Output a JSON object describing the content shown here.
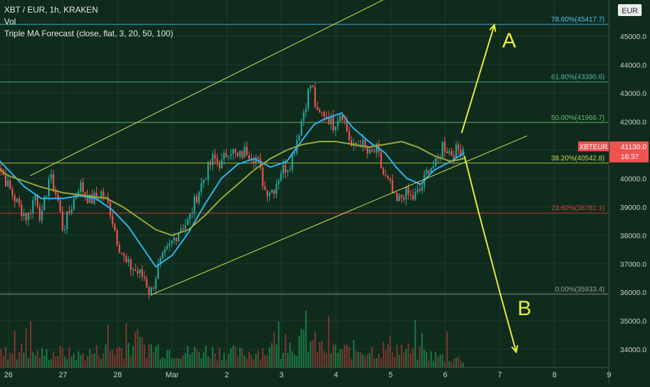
{
  "header": {
    "symbol_line": "XBT / EUR, 1h, KRAKEN",
    "volume_label": "Vol",
    "indicator_label": "Triple MA Forecast (close, flat, 3, 20, 50, 100)"
  },
  "currency_badge": "EUR",
  "price_tag": {
    "symbol": "XBTEUR",
    "value": "41130.0",
    "countdown": "16:37"
  },
  "annotations": {
    "up_label": "A",
    "down_label": "B"
  },
  "colors": {
    "background": "#0f2b1c",
    "up_candle": "#26a69a",
    "down_candle": "#ef5350",
    "fast_ma": "#29b6f6",
    "slow_ma": "#9aa83a",
    "channel": "#d4e157",
    "forecast_arrows": "#e6ee3c",
    "fib_78_6": "#4fc3f7",
    "fib_61_8": "#4db6ac",
    "fib_50": "#66bb6a",
    "fib_38_2": "#c6d845",
    "fib_23_6": "#e53935",
    "fib_0": "#9e9e9e"
  },
  "chart_data": {
    "type": "candlestick",
    "symbol": "XBT / EUR",
    "interval": "1h",
    "exchange": "KRAKEN",
    "last_price": 41130.0,
    "y_ticks": [
      34000,
      35000,
      36000,
      37000,
      38000,
      39000,
      40000,
      41000,
      42000,
      43000,
      44000,
      45000
    ],
    "y_tick_labels": [
      "34000.0",
      "35000.0",
      "36000.0",
      "37000.0",
      "38000.0",
      "39000.0",
      "40000.0",
      "41000.0",
      "42000.0",
      "43000.0",
      "44000.0",
      "45000.0"
    ],
    "x_tick_labels": [
      "26",
      "27",
      "28",
      "Mar",
      "2",
      "3",
      "4",
      "5",
      "6",
      "7",
      "8",
      "9"
    ],
    "fibonacci_levels": [
      {
        "label": "78.60%(45417.7)",
        "value": 45417.7
      },
      {
        "label": "61.80%(43390.6)",
        "value": 43390.6
      },
      {
        "label": "50.00%(41966.7)",
        "value": 41966.7
      },
      {
        "label": "38.20%(40542.8)",
        "value": 40542.8
      },
      {
        "label": "23.60%(38781.1)",
        "value": 38781.1
      },
      {
        "label": "0.00%(35933.4)",
        "value": 35933.4
      }
    ],
    "price_path": [
      [
        25.7,
        41000
      ],
      [
        25.85,
        40400
      ],
      [
        26.0,
        39700
      ],
      [
        26.2,
        39000
      ],
      [
        26.35,
        38600
      ],
      [
        26.5,
        39500
      ],
      [
        26.6,
        38500
      ],
      [
        26.75,
        40100
      ],
      [
        26.9,
        39300
      ],
      [
        27.0,
        38200
      ],
      [
        27.15,
        39000
      ],
      [
        27.3,
        39800
      ],
      [
        27.5,
        39200
      ],
      [
        27.7,
        39500
      ],
      [
        27.85,
        39000
      ],
      [
        28.0,
        37800
      ],
      [
        28.15,
        37000
      ],
      [
        28.3,
        36800
      ],
      [
        28.5,
        36500
      ],
      [
        28.6,
        35933
      ],
      [
        28.75,
        36900
      ],
      [
        28.95,
        37600
      ],
      [
        29.15,
        38300
      ],
      [
        29.3,
        38500
      ],
      [
        29.45,
        39400
      ],
      [
        29.6,
        40100
      ],
      [
        29.75,
        40700
      ],
      [
        29.9,
        40500
      ],
      [
        30.05,
        41100
      ],
      [
        30.2,
        40700
      ],
      [
        30.35,
        41000
      ],
      [
        30.55,
        40700
      ],
      [
        30.7,
        39600
      ],
      [
        30.85,
        39600
      ],
      [
        31.0,
        40300
      ],
      [
        31.15,
        40500
      ],
      [
        31.3,
        41500
      ],
      [
        31.4,
        42300
      ],
      [
        31.5,
        43100
      ],
      [
        31.55,
        43390
      ],
      [
        31.65,
        42200
      ],
      [
        31.8,
        42300
      ],
      [
        31.95,
        41900
      ],
      [
        32.1,
        42400
      ],
      [
        32.2,
        41700
      ],
      [
        32.3,
        41000
      ],
      [
        32.45,
        41300
      ],
      [
        32.6,
        40800
      ],
      [
        32.75,
        41000
      ],
      [
        32.85,
        40200
      ],
      [
        33.0,
        39700
      ],
      [
        33.1,
        39100
      ],
      [
        33.25,
        39500
      ],
      [
        33.4,
        39300
      ],
      [
        33.55,
        39600
      ],
      [
        33.7,
        40400
      ],
      [
        33.85,
        40500
      ],
      [
        33.95,
        41200
      ],
      [
        34.1,
        40900
      ],
      [
        34.25,
        41000
      ],
      [
        34.35,
        41130
      ]
    ],
    "volume_profile": [
      [
        25.7,
        0.35
      ],
      [
        26.0,
        0.45
      ],
      [
        26.3,
        0.5
      ],
      [
        26.6,
        0.4
      ],
      [
        27.0,
        0.45
      ],
      [
        27.3,
        0.35
      ],
      [
        27.7,
        0.5
      ],
      [
        28.0,
        0.55
      ],
      [
        28.3,
        0.7
      ],
      [
        28.6,
        0.6
      ],
      [
        29.0,
        0.5
      ],
      [
        29.3,
        0.45
      ],
      [
        29.6,
        0.5
      ],
      [
        30.0,
        0.45
      ],
      [
        30.3,
        0.4
      ],
      [
        30.6,
        0.5
      ],
      [
        31.0,
        0.55
      ],
      [
        31.3,
        0.75
      ],
      [
        31.5,
        0.8
      ],
      [
        31.8,
        0.55
      ],
      [
        32.2,
        0.5
      ],
      [
        32.5,
        0.55
      ],
      [
        32.8,
        0.5
      ],
      [
        33.0,
        0.65
      ],
      [
        33.3,
        0.5
      ],
      [
        33.6,
        0.4
      ],
      [
        34.0,
        0.3
      ],
      [
        34.35,
        0.25
      ]
    ],
    "moving_averages": [
      {
        "name": "fast",
        "points": [
          [
            25.7,
            40900
          ],
          [
            26.0,
            40300
          ],
          [
            26.3,
            39700
          ],
          [
            26.6,
            39300
          ],
          [
            27.0,
            39300
          ],
          [
            27.3,
            39400
          ],
          [
            27.6,
            39300
          ],
          [
            27.9,
            38900
          ],
          [
            28.2,
            38300
          ],
          [
            28.45,
            37600
          ],
          [
            28.7,
            36900
          ],
          [
            29.0,
            37300
          ],
          [
            29.3,
            38100
          ],
          [
            29.6,
            39100
          ],
          [
            29.9,
            40000
          ],
          [
            30.2,
            40500
          ],
          [
            30.5,
            40700
          ],
          [
            30.8,
            40400
          ],
          [
            31.1,
            40600
          ],
          [
            31.4,
            41400
          ],
          [
            31.6,
            41900
          ],
          [
            31.8,
            42100
          ],
          [
            32.1,
            42300
          ],
          [
            32.3,
            41800
          ],
          [
            32.6,
            41300
          ],
          [
            32.9,
            40900
          ],
          [
            33.1,
            40400
          ],
          [
            33.3,
            40000
          ],
          [
            33.55,
            39800
          ],
          [
            33.8,
            40300
          ],
          [
            34.1,
            40600
          ],
          [
            34.35,
            40900
          ]
        ]
      },
      {
        "name": "slow",
        "points": [
          [
            25.7,
            40500
          ],
          [
            26.0,
            40100
          ],
          [
            26.3,
            39900
          ],
          [
            26.6,
            39700
          ],
          [
            27.0,
            39500
          ],
          [
            27.4,
            39400
          ],
          [
            27.8,
            39300
          ],
          [
            28.1,
            39000
          ],
          [
            28.4,
            38600
          ],
          [
            28.7,
            38200
          ],
          [
            29.0,
            38000
          ],
          [
            29.3,
            38200
          ],
          [
            29.6,
            38700
          ],
          [
            29.9,
            39300
          ],
          [
            30.2,
            39800
          ],
          [
            30.5,
            40300
          ],
          [
            30.8,
            40700
          ],
          [
            31.1,
            41000
          ],
          [
            31.4,
            41200
          ],
          [
            31.7,
            41300
          ],
          [
            32.0,
            41300
          ],
          [
            32.3,
            41200
          ],
          [
            32.6,
            41100
          ],
          [
            32.9,
            41200
          ],
          [
            33.2,
            41300
          ],
          [
            33.5,
            41100
          ],
          [
            33.8,
            40800
          ],
          [
            34.1,
            40600
          ],
          [
            34.35,
            40700
          ]
        ]
      }
    ],
    "channel": {
      "lower": [
        [
          28.6,
          35900
        ],
        [
          35.5,
          41500
        ]
      ],
      "upper": [
        [
          26.4,
          40100
        ],
        [
          35.5,
          48800
        ]
      ]
    },
    "forecast_paths": [
      {
        "label": "A",
        "points": [
          [
            34.3,
            41600
          ],
          [
            34.9,
            45400
          ]
        ]
      },
      {
        "label": "B",
        "points": [
          [
            34.35,
            40800
          ],
          [
            34.6,
            38900
          ],
          [
            35.0,
            36000
          ],
          [
            35.3,
            33900
          ]
        ]
      }
    ]
  }
}
